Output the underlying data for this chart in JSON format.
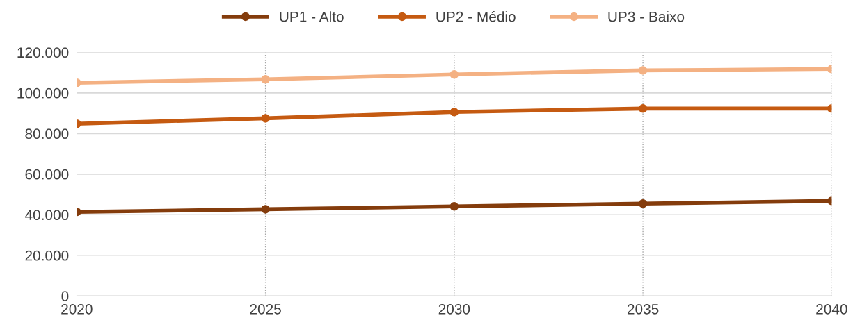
{
  "chart_data": {
    "type": "line",
    "x": [
      2020,
      2025,
      2030,
      2035,
      2040
    ],
    "series": [
      {
        "name": "UP1 - Alto",
        "color": "#843c0c",
        "values": [
          41400,
          42700,
          44100,
          45500,
          46800
        ]
      },
      {
        "name": "UP2 - Médio",
        "color": "#c55a11",
        "values": [
          84800,
          87500,
          90600,
          92300,
          92300
        ]
      },
      {
        "name": "UP3 - Baixo",
        "color": "#f4b183",
        "values": [
          105000,
          106700,
          109100,
          111100,
          111800
        ]
      }
    ],
    "xlim": [
      2020,
      2040
    ],
    "xticks": [
      2020,
      2025,
      2030,
      2035,
      2040
    ],
    "ylim": [
      0,
      120000
    ],
    "yticks": [
      0,
      {
        "value": 20000,
        "label": "20.000"
      },
      {
        "value": 40000,
        "label": "40.000"
      },
      {
        "value": 60000,
        "label": "60.000"
      },
      {
        "value": 80000,
        "label": "80.000"
      },
      {
        "value": 100000,
        "label": "100.000"
      },
      {
        "value": 120000,
        "label": "120.000"
      }
    ],
    "grid": true,
    "legend": "top",
    "marker": "circle",
    "line_style": "solid"
  }
}
